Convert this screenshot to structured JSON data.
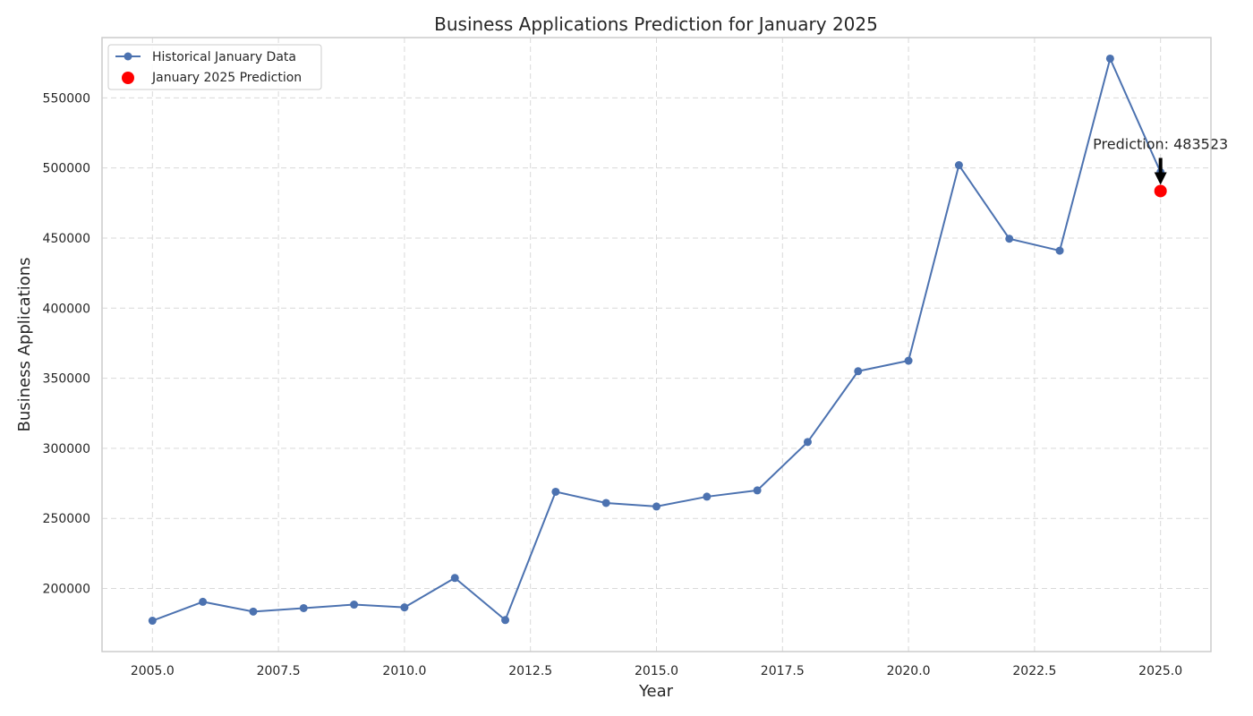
{
  "chart_data": {
    "type": "line",
    "title": "Business Applications Prediction for January 2025",
    "xlabel": "Year",
    "ylabel": "Business Applications",
    "xlim": [
      2004.0,
      2026.0
    ],
    "ylim": [
      155000,
      593000
    ],
    "xticks": [
      2005.0,
      2007.5,
      2010.0,
      2012.5,
      2015.0,
      2017.5,
      2020.0,
      2022.5,
      2025.0
    ],
    "xtick_labels": [
      "2005.0",
      "2007.5",
      "2010.0",
      "2012.5",
      "2015.0",
      "2017.5",
      "2020.0",
      "2022.5",
      "2025.0"
    ],
    "yticks": [
      200000,
      250000,
      300000,
      350000,
      400000,
      450000,
      500000,
      550000
    ],
    "ytick_labels": [
      "200000",
      "250000",
      "300000",
      "350000",
      "400000",
      "450000",
      "500000",
      "550000"
    ],
    "grid": true,
    "legend_position": "top-left",
    "series": [
      {
        "name": "Historical January Data",
        "type": "line",
        "marker": "circle",
        "color": "#4c72b0",
        "x": [
          2005,
          2006,
          2007,
          2008,
          2009,
          2010,
          2011,
          2012,
          2013,
          2014,
          2015,
          2016,
          2017,
          2018,
          2019,
          2020,
          2021,
          2022,
          2023,
          2024,
          2025
        ],
        "y": [
          177000,
          190500,
          183500,
          186000,
          188500,
          186500,
          207500,
          177500,
          269000,
          261000,
          258500,
          265500,
          270000,
          304500,
          355000,
          362500,
          502000,
          449500,
          441000,
          578000,
          497000
        ]
      },
      {
        "name": "January 2025 Prediction",
        "type": "scatter",
        "marker": "circle",
        "color": "#ff0000",
        "x": [
          2025
        ],
        "y": [
          483523
        ]
      }
    ],
    "annotations": [
      {
        "text": "Prediction: 483523",
        "x": 2025,
        "y": 483523,
        "arrow": true
      }
    ]
  }
}
